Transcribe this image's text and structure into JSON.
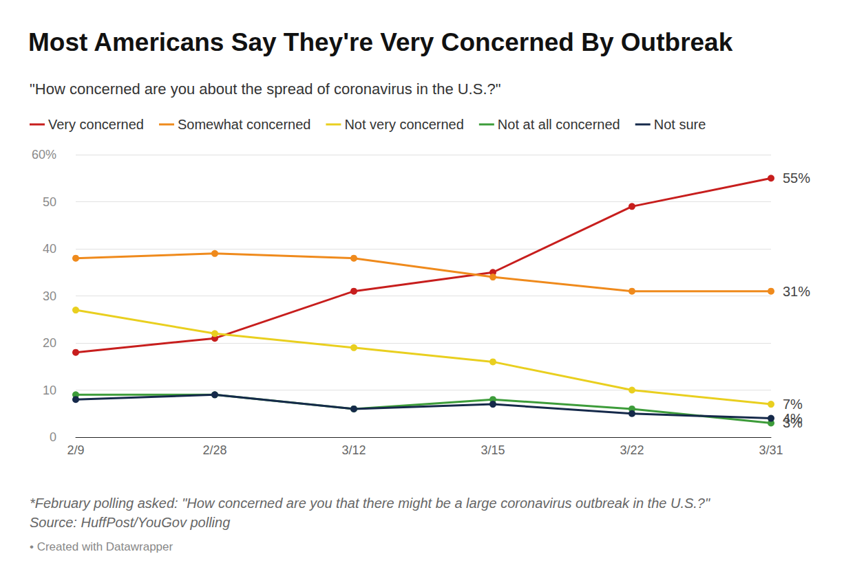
{
  "chart_data": {
    "type": "line",
    "title": "Most Americans Say They're Very Concerned By Outbreak",
    "subtitle": "\"How concerned are you about the spread of coronavirus in the U.S.?\"",
    "categories": [
      "2/9",
      "2/28",
      "3/12",
      "3/15",
      "3/22",
      "3/31"
    ],
    "series": [
      {
        "name": "Very concerned",
        "color": "#c71e1d",
        "values": [
          18,
          21,
          31,
          35,
          49,
          55
        ],
        "value_labels": [
          null,
          null,
          null,
          null,
          null,
          "55%"
        ]
      },
      {
        "name": "Somewhat concerned",
        "color": "#ef8a1c",
        "values": [
          38,
          39,
          38,
          34,
          31,
          31
        ],
        "value_labels": [
          null,
          null,
          null,
          null,
          null,
          "31%"
        ]
      },
      {
        "name": "Not very concerned",
        "color": "#e9cf1f",
        "values": [
          27,
          22,
          19,
          16,
          10,
          7
        ],
        "value_labels": [
          null,
          null,
          null,
          null,
          null,
          "7%"
        ]
      },
      {
        "name": "Not at all concerned",
        "color": "#3d9c3a",
        "values": [
          9,
          9,
          6,
          8,
          6,
          3
        ],
        "value_labels": [
          null,
          null,
          null,
          null,
          null,
          "3%"
        ]
      },
      {
        "name": "Not sure",
        "color": "#15294a",
        "values": [
          8,
          9,
          6,
          7,
          5,
          4
        ],
        "value_labels": [
          null,
          null,
          null,
          null,
          null,
          "4%"
        ]
      }
    ],
    "ylim": [
      0,
      60
    ],
    "yticks": [
      0,
      10,
      20,
      30,
      40,
      50,
      {
        "value": 60,
        "label": "60%"
      }
    ],
    "grid": true,
    "legend": "top",
    "marker": "circle",
    "data_labels": true,
    "footnote": "*February polling asked: \"How concerned are you that there might be a large coronavirus outbreak in the U.S.?\"",
    "source": "Source: HuffPost/YouGov polling",
    "credit": "• Created with Datawrapper"
  }
}
